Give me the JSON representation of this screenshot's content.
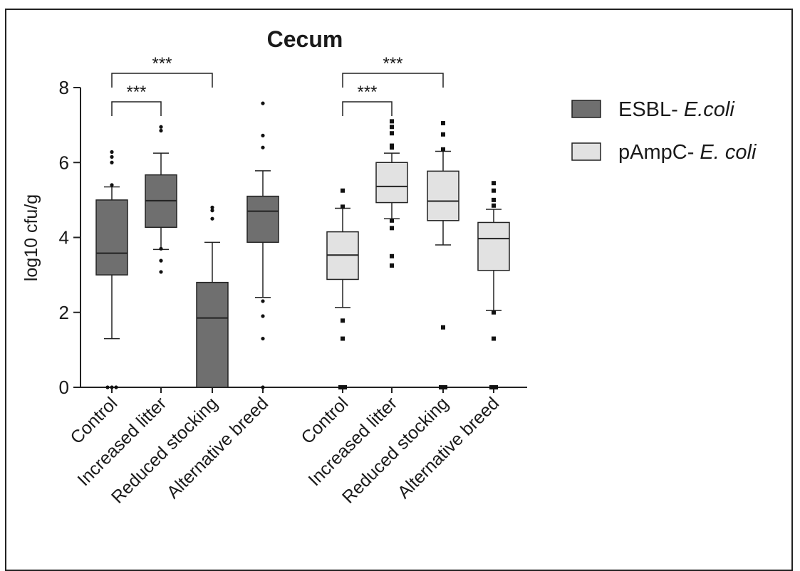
{
  "chart_data": {
    "type": "box",
    "title": "Cecum",
    "ylabel": "log10 cfu/g",
    "ylim": [
      0,
      8
    ],
    "yticks": [
      0,
      2,
      4,
      6,
      8
    ],
    "categories": [
      "Control",
      "Increased litter",
      "Reduced stocking",
      "Alternative breed"
    ],
    "legend_position": "right",
    "series": [
      {
        "name": "ESBL- E.coli",
        "name_prefix": "ESBL- ",
        "name_italic": "E.coli",
        "color": "#6f6f6f",
        "boxes": [
          {
            "category": "Control",
            "q1": 3.0,
            "median": 3.58,
            "q3": 5.0,
            "whisker_low": 1.3,
            "whisker_high": 5.35,
            "outliers": [
              5.4,
              6.0,
              6.15,
              6.28,
              0,
              0,
              0
            ]
          },
          {
            "category": "Increased litter",
            "q1": 4.27,
            "median": 4.98,
            "q3": 5.67,
            "whisker_low": 3.68,
            "whisker_high": 6.25,
            "outliers": [
              6.85,
              6.95,
              3.08,
              3.38,
              3.7
            ]
          },
          {
            "category": "Reduced stocking",
            "q1": 0,
            "median": 1.85,
            "q3": 2.8,
            "whisker_low": 0,
            "whisker_high": 3.87,
            "outliers": [
              4.5,
              4.72,
              4.8
            ]
          },
          {
            "category": "Alternative breed",
            "q1": 3.87,
            "median": 4.7,
            "q3": 5.1,
            "whisker_low": 2.4,
            "whisker_high": 5.78,
            "outliers": [
              6.4,
              6.72,
              7.58,
              2.3,
              1.9,
              1.3,
              0
            ]
          }
        ]
      },
      {
        "name": "pAmpC- E. coli",
        "name_prefix": "pAmpC- ",
        "name_italic": "E. coli",
        "color": "#e2e2e2",
        "boxes": [
          {
            "category": "Control",
            "q1": 2.88,
            "median": 3.53,
            "q3": 4.15,
            "whisker_low": 2.13,
            "whisker_high": 4.78,
            "outliers": [
              4.82,
              5.25,
              1.78,
              1.3,
              0,
              0
            ]
          },
          {
            "category": "Increased litter",
            "q1": 4.93,
            "median": 5.36,
            "q3": 6.0,
            "whisker_low": 4.5,
            "whisker_high": 6.25,
            "outliers": [
              6.4,
              6.45,
              6.78,
              6.95,
              7.1,
              4.45,
              4.25,
              3.5,
              3.25
            ]
          },
          {
            "category": "Reduced stocking",
            "q1": 4.45,
            "median": 4.97,
            "q3": 5.77,
            "whisker_low": 3.8,
            "whisker_high": 6.3,
            "outliers": [
              6.35,
              6.75,
              7.05,
              1.6,
              0,
              0
            ]
          },
          {
            "category": "Alternative breed",
            "q1": 3.12,
            "median": 3.97,
            "q3": 4.4,
            "whisker_low": 2.05,
            "whisker_high": 4.75,
            "outliers": [
              4.85,
              5.0,
              5.25,
              5.45,
              2.0,
              1.3,
              0,
              0
            ]
          }
        ]
      }
    ],
    "annotations": [
      {
        "text": "***",
        "series": "ESBL- E.coli",
        "from": "Control",
        "to": "Increased litter",
        "y": 7.62
      },
      {
        "text": "***",
        "series": "ESBL- E.coli",
        "from": "Control",
        "to": "Reduced stocking",
        "y": 8.38
      },
      {
        "text": "***",
        "series": "pAmpC- E. coli",
        "from": "Control",
        "to": "Increased litter",
        "y": 7.62
      },
      {
        "text": "***",
        "series": "pAmpC- E. coli",
        "from": "Control",
        "to": "Reduced stocking",
        "y": 8.38
      }
    ]
  }
}
